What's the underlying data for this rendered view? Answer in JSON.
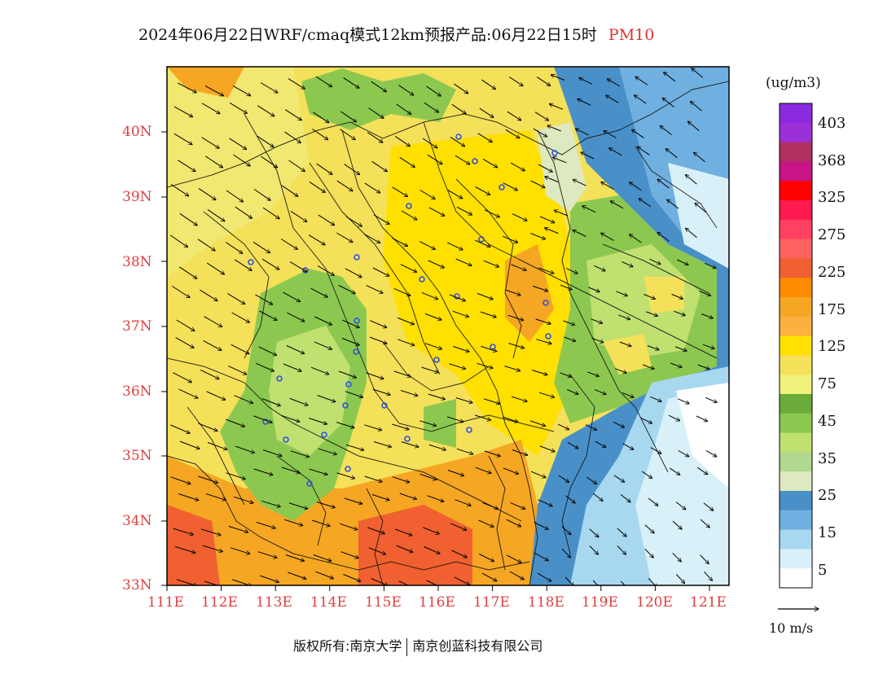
{
  "title": {
    "main": "2024年06月22日WRF/cmaq模式12km预报产品:06月22日15时",
    "species": "PM10"
  },
  "axes": {
    "lat_labels": [
      "40N",
      "39N",
      "38N",
      "37N",
      "36N",
      "35N",
      "34N",
      "33N"
    ],
    "lon_labels": [
      "111E",
      "112E",
      "113E",
      "114E",
      "115E",
      "116E",
      "117E",
      "118E",
      "119E",
      "120E",
      "121E"
    ]
  },
  "colorbar": {
    "unit": "(ug/m3)",
    "labels": [
      "403",
      "368",
      "325",
      "275",
      "225",
      "175",
      "125",
      "75",
      "45",
      "35",
      "25",
      "15",
      "5"
    ],
    "colors": [
      "#8a2be2",
      "#9b30d9",
      "#b03060",
      "#c71585",
      "#ff0000",
      "#ff1a4f",
      "#ff4060",
      "#ff6060",
      "#f06030",
      "#ff8c00",
      "#f5a623",
      "#fbb040",
      "#ffe000",
      "#f5e05a",
      "#f0f07a",
      "#6aab3a",
      "#8cc850",
      "#c0e070",
      "#b0d890",
      "#dde9c0",
      "#4a90c8",
      "#70b0e0",
      "#a8d8f0",
      "#d8f0f8",
      "#ffffff"
    ],
    "map_colors": {
      "yellow": "#f5e05a",
      "bright_yellow": "#ffe000",
      "orange": "#f5a623",
      "dark_orange": "#f06030",
      "green": "#8cc850",
      "dark_green": "#6aab3a",
      "light_green": "#c0e070",
      "pale_green": "#dde9c0",
      "blue": "#4a90c8",
      "light_blue": "#a8d8f0",
      "pale_blue": "#d8f0f8"
    }
  },
  "wind_scale": {
    "label": "10 m/s"
  },
  "copyright": {
    "label": "版权所有:南京大学",
    "org": "南京创蓝科技有限公司"
  }
}
